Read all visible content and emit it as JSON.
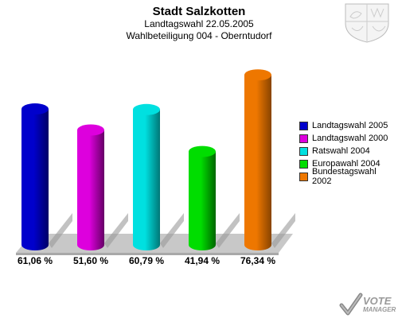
{
  "header": {
    "title": "Stadt Salzkotten",
    "subtitle1": "Landtagswahl 22.05.2005",
    "subtitle2": "Wahlbeteiligung 004 - Oberntudorf"
  },
  "chart_data": {
    "type": "bar",
    "title": "Stadt Salzkotten",
    "categories": [
      "Landtagswahl 2005",
      "Landtagswahl 2000",
      "Ratswahl 2004",
      "Europawahl 2004",
      "Bundestagswahl 2002"
    ],
    "values": [
      61.06,
      51.6,
      60.79,
      41.94,
      76.34
    ],
    "value_labels": [
      "61,06 %",
      "51,60 %",
      "60,79 %",
      "41,94 %",
      "76,34 %"
    ],
    "colors": [
      "#0000cc",
      "#dd00dd",
      "#00e0e0",
      "#00dd00",
      "#ee7700"
    ],
    "legend_position": "right",
    "grid": false
  },
  "legend": {
    "items": [
      {
        "label": "Landtagswahl 2005",
        "color": "#0000cc"
      },
      {
        "label": "Landtagswahl 2000",
        "color": "#dd00dd"
      },
      {
        "label": "Ratswahl 2004",
        "color": "#00e0e0"
      },
      {
        "label": "Europawahl 2004",
        "color": "#00dd00"
      },
      {
        "label": "Bundestagswahl 2002",
        "color": "#ee7700"
      }
    ]
  },
  "branding": {
    "logo_line1": "VOTE",
    "logo_line2": "MANAGER",
    "crest_icon": "coat-of-arms-icon",
    "logo_icon": "ballot-check-icon"
  }
}
